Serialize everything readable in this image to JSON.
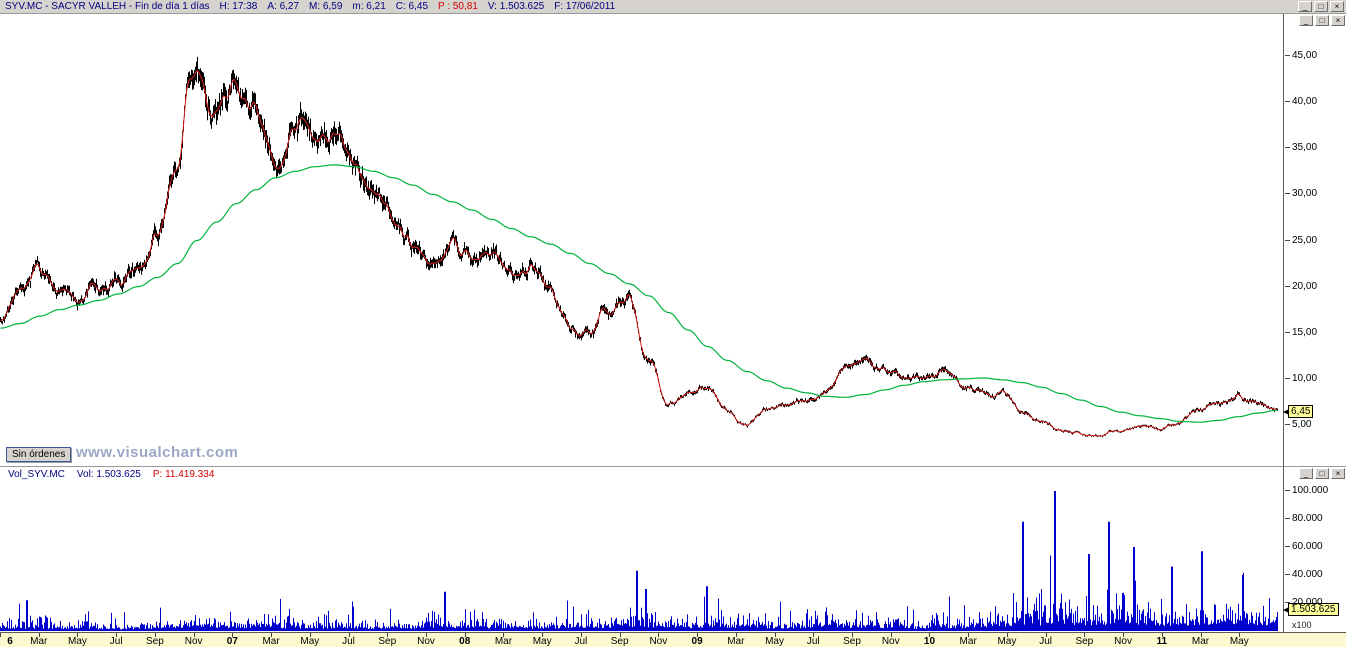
{
  "icons": {
    "minimize": "_",
    "maximize": "□",
    "close": "×"
  },
  "window": {
    "title_segments": [
      {
        "text": "SYV.MC - SACYR VALLEH - Fin de día 1 días",
        "color": "#000080"
      },
      {
        "text": "H: 17:38",
        "color": "#000080"
      },
      {
        "text": "A: 6,27",
        "color": "#000080"
      },
      {
        "text": "M: 6,59",
        "color": "#000080"
      },
      {
        "text": "m: 6,21",
        "color": "#000080"
      },
      {
        "text": "C: 6,45",
        "color": "#000080"
      },
      {
        "text": "P : 50,81",
        "color": "#d40000"
      },
      {
        "text": "V: 1.503.625",
        "color": "#000080"
      },
      {
        "text": "F: 17/06/2011",
        "color": "#000080"
      }
    ]
  },
  "price_pane": {
    "orders_button": "Sin órdenes",
    "watermark": "www.visualchart.com",
    "last_price_label": "6,45",
    "y_ticks": [
      {
        "label": "45,00",
        "value": 45
      },
      {
        "label": "40,00",
        "value": 40
      },
      {
        "label": "35,00",
        "value": 35
      },
      {
        "label": "30,00",
        "value": 30
      },
      {
        "label": "25,00",
        "value": 25
      },
      {
        "label": "20,00",
        "value": 20
      },
      {
        "label": "15,00",
        "value": 15
      },
      {
        "label": "10,00",
        "value": 10
      },
      {
        "label": "5,00",
        "value": 5
      }
    ]
  },
  "volume_pane": {
    "header_segments": [
      {
        "text": "Vol_SYV.MC",
        "color": "#000080"
      },
      {
        "text": "Vol: 1.503.625",
        "color": "#000080"
      },
      {
        "text": "P: 11.419.334",
        "color": "#d40000"
      }
    ],
    "last_volume_label": "1.503.625",
    "scale_label": "x100",
    "y_ticks": [
      {
        "label": "100.000",
        "value": 100000
      },
      {
        "label": "80.000",
        "value": 80000
      },
      {
        "label": "60.000",
        "value": 60000
      },
      {
        "label": "40.000",
        "value": 40000
      },
      {
        "label": "20.000",
        "value": 20000
      }
    ]
  },
  "x_axis": {
    "labels": [
      {
        "t": "6",
        "yr": true
      },
      {
        "t": "Mar"
      },
      {
        "t": "May"
      },
      {
        "t": "Jul"
      },
      {
        "t": "Sep"
      },
      {
        "t": "Nov"
      },
      {
        "t": "07",
        "yr": true
      },
      {
        "t": "Mar"
      },
      {
        "t": "May"
      },
      {
        "t": "Jul"
      },
      {
        "t": "Sep"
      },
      {
        "t": "Nov"
      },
      {
        "t": "08",
        "yr": true
      },
      {
        "t": "Mar"
      },
      {
        "t": "May"
      },
      {
        "t": "Jul"
      },
      {
        "t": "Sep"
      },
      {
        "t": "Nov"
      },
      {
        "t": "09",
        "yr": true
      },
      {
        "t": "Mar"
      },
      {
        "t": "May"
      },
      {
        "t": "Jul"
      },
      {
        "t": "Sep"
      },
      {
        "t": "Nov"
      },
      {
        "t": "10",
        "yr": true
      },
      {
        "t": "Mar"
      },
      {
        "t": "May"
      },
      {
        "t": "Jul"
      },
      {
        "t": "Sep"
      },
      {
        "t": "Nov"
      },
      {
        "t": "11",
        "yr": true
      },
      {
        "t": "Mar"
      },
      {
        "t": "May"
      }
    ]
  },
  "chart_data": {
    "type": "candlestick-with-volume",
    "symbol": "SYV.MC",
    "period": "Fin de día 1 días",
    "last_close": 6.45,
    "last_volume": 1503625,
    "ylim": [
      2.5,
      48
    ],
    "volume_ylim_x100": [
      0,
      105000
    ],
    "price_ticks": [
      45,
      40,
      35,
      30,
      25,
      20,
      15,
      10,
      5
    ],
    "volume_ticks_x100": [
      100000,
      80000,
      60000,
      40000,
      20000
    ],
    "red_ma_color": "#dd2222",
    "volume_color": "#0000cc",
    "x_monthly": [
      "2006-01",
      "2006-02",
      "2006-03",
      "2006-04",
      "2006-05",
      "2006-06",
      "2006-07",
      "2006-08",
      "2006-09",
      "2006-10",
      "2006-11",
      "2006-12",
      "2007-01",
      "2007-02",
      "2007-03",
      "2007-04",
      "2007-05",
      "2007-06",
      "2007-07",
      "2007-08",
      "2007-09",
      "2007-10",
      "2007-11",
      "2007-12",
      "2008-01",
      "2008-02",
      "2008-03",
      "2008-04",
      "2008-05",
      "2008-06",
      "2008-07",
      "2008-08",
      "2008-09",
      "2008-10",
      "2008-11",
      "2008-12",
      "2009-01",
      "2009-02",
      "2009-03",
      "2009-04",
      "2009-05",
      "2009-06",
      "2009-07",
      "2009-08",
      "2009-09",
      "2009-10",
      "2009-11",
      "2009-12",
      "2010-01",
      "2010-02",
      "2010-03",
      "2010-04",
      "2010-05",
      "2010-06",
      "2010-07",
      "2010-08",
      "2010-09",
      "2010-10",
      "2010-11",
      "2010-12",
      "2011-01",
      "2011-02",
      "2011-03",
      "2011-04",
      "2011-05",
      "2011-06"
    ],
    "series": [
      {
        "name": "SYV.MC close (EUR, monthly approximation)",
        "color": "#000000",
        "values": [
          16.5,
          19.5,
          22.0,
          19.5,
          18.5,
          19.5,
          21.0,
          23.0,
          25.0,
          33.0,
          44.0,
          39.5,
          40.5,
          38.0,
          33.0,
          38.5,
          34.5,
          35.5,
          32.0,
          30.0,
          27.5,
          25.0,
          22.5,
          26.5,
          24.0,
          25.5,
          21.5,
          23.0,
          20.5,
          16.0,
          15.0,
          18.0,
          20.0,
          12.0,
          7.5,
          8.5,
          9.0,
          6.5,
          5.0,
          6.5,
          7.0,
          7.5,
          8.5,
          11.0,
          12.0,
          11.0,
          9.5,
          10.0,
          10.5,
          9.0,
          9.0,
          8.5,
          6.2,
          5.3,
          4.5,
          4.2,
          4.0,
          4.6,
          4.8,
          4.7,
          5.2,
          6.6,
          7.6,
          8.6,
          7.7,
          6.45
        ]
      },
      {
        "name": "Long moving average (green)",
        "color": "#00b33c",
        "values": [
          15.5,
          16.0,
          16.8,
          17.5,
          18.0,
          18.5,
          19.2,
          20.0,
          21.0,
          22.5,
          25.0,
          27.0,
          29.0,
          30.5,
          31.8,
          32.5,
          33.0,
          33.2,
          33.0,
          32.5,
          31.8,
          31.0,
          30.0,
          29.2,
          28.3,
          27.3,
          26.3,
          25.4,
          24.6,
          23.6,
          22.5,
          21.4,
          20.3,
          19.0,
          17.2,
          15.3,
          13.5,
          12.0,
          10.8,
          9.8,
          9.0,
          8.5,
          8.1,
          8.0,
          8.3,
          8.8,
          9.3,
          9.7,
          9.9,
          10.0,
          10.1,
          9.9,
          9.6,
          9.1,
          8.4,
          7.7,
          7.0,
          6.4,
          6.0,
          5.7,
          5.4,
          5.3,
          5.5,
          5.9,
          6.3,
          6.6
        ]
      }
    ],
    "volume_x100_monthly": [
      4500,
      5000,
      5500,
      4500,
      5000,
      4000,
      3500,
      4000,
      4500,
      6500,
      10000,
      6500,
      6500,
      6000,
      6500,
      5500,
      6000,
      5000,
      5500,
      5000,
      6000,
      5500,
      6500,
      5500,
      6500,
      6000,
      6500,
      5500,
      5500,
      6000,
      6500,
      5500,
      9000,
      8500,
      7500,
      6000,
      7000,
      6500,
      8500,
      6500,
      6000,
      6500,
      9000,
      7000,
      7000,
      6500,
      6000,
      5000,
      6500,
      6000,
      7500,
      9500,
      15000,
      13000,
      17000,
      11000,
      13000,
      18000,
      15000,
      12000,
      10000,
      13000,
      15000,
      13000,
      11000,
      16000
    ],
    "volume_spikes": [
      {
        "pos": 0.021,
        "v": 22000
      },
      {
        "pos": 0.348,
        "v": 28000
      },
      {
        "pos": 0.498,
        "v": 43000
      },
      {
        "pos": 0.505,
        "v": 30000
      },
      {
        "pos": 0.553,
        "v": 32000
      },
      {
        "pos": 0.8,
        "v": 78000
      },
      {
        "pos": 0.825,
        "v": 100000
      },
      {
        "pos": 0.852,
        "v": 55000
      },
      {
        "pos": 0.867,
        "v": 78000
      },
      {
        "pos": 0.887,
        "v": 60000
      },
      {
        "pos": 0.917,
        "v": 46000
      },
      {
        "pos": 0.94,
        "v": 57000
      },
      {
        "pos": 0.972,
        "v": 40000
      }
    ]
  }
}
